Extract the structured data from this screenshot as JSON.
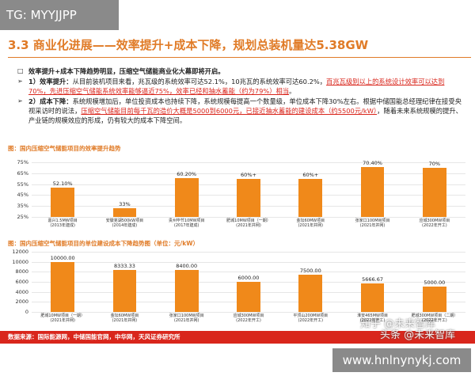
{
  "tag": "TG: MYYJJPP",
  "title": "3.3 商业化进展——效率提升+成本下降，规划总装机量达5.38GW",
  "bullets": [
    {
      "marker": "□",
      "segments": [
        {
          "text": "效率提升+成本下降趋势明显，压缩空气储能商业化大幕即将开启。",
          "bold": true
        }
      ]
    },
    {
      "marker": "➢",
      "segments": [
        {
          "text": "1）效率提升：",
          "bold": true
        },
        {
          "text": "从目前装机项目来看，兆瓦级的系统效率可达52.1%，10兆瓦的系统效率可达60.2%，"
        },
        {
          "text": "百兆瓦级别以上的系统设计效率可以达到70%，先进压缩空气储能系统效率能够逼近75%，效率已经和抽水蓄能（约为79%）相当",
          "red": true
        },
        {
          "text": "。"
        }
      ]
    },
    {
      "marker": "➢",
      "segments": [
        {
          "text": "2）成本下降：",
          "bold": true
        },
        {
          "text": "系统规模增加后，单位投资成本也持续下降，系统规模每提高一个数量级，单位成本下降30%左右。根据中储国能总经理纪律在接受央视采访时的说法，"
        },
        {
          "text": "压缩空气储能目前每千瓦的造价大概是5000到6000元，已接近抽水蓄能的建设成本（约5500元/kW）",
          "red": true
        },
        {
          "text": "，随着未来系统规模的提升、产业链的规模效应的形成，仍有较大的成本下降空间。"
        }
      ]
    }
  ],
  "chart_data": [
    {
      "type": "bar",
      "title": "图：国内压缩空气储能项目的效率提升趋势",
      "categories": [
        "嘉兴1.5MW项目\n(2013年建成)",
        "安徽芜湖500kW项目\n(2014年建成)",
        "贵州毕节10MW项目\n(2017年建成)",
        "肥城10MW项目（一期）\n(2021年并网)",
        "金坛60MW项目\n(2021年并网)",
        "张家口100MW项目\n(2021年并网)",
        "应城300MW项目\n(2022年开工)"
      ],
      "values": [
        52.1,
        33,
        60.2,
        60,
        60,
        70.4,
        70
      ],
      "value_labels": [
        "52.10%",
        "33%",
        "60.20%",
        "60%+",
        "60%+",
        "70.40%",
        "70%"
      ],
      "color": "#f0891a",
      "grid": true,
      "ylim": [
        25,
        75
      ],
      "yticks": [
        {
          "value": 25,
          "label": "25%"
        },
        {
          "value": 35,
          "label": "35%"
        },
        {
          "value": 45,
          "label": "45%"
        },
        {
          "value": 55,
          "label": "55%"
        },
        {
          "value": 65,
          "label": "65%"
        },
        {
          "value": 75,
          "label": "75%"
        }
      ]
    },
    {
      "type": "bar",
      "title": "图：国内压缩空气储能项目的单位建设成本下降趋势图（单位：元/kW）",
      "categories": [
        "肥城10MW项目（一期）\n(2021年并网)",
        "金坛60MW项目\n(2021年并网)",
        "张家口100MW项目\n(2021年并网)",
        "应城300MW项目\n(2022年开工)",
        "平顶山200MW项目\n(2022年开工)",
        "淮安465MW项目\n(2022年开工)",
        "肥城300MW项目（二期）\n(2022年开工)"
      ],
      "values": [
        10000,
        8333.33,
        8400,
        6000,
        7500,
        5666.67,
        5000
      ],
      "value_labels": [
        "10000.00",
        "8333.33",
        "8400.00",
        "6000.00",
        "7500.00",
        "5666.67",
        "5000.00"
      ],
      "color": "#f0891a",
      "grid": true,
      "ylim": [
        0,
        12000
      ],
      "yticks": [
        0,
        2000,
        4000,
        6000,
        8000,
        10000,
        12000
      ]
    }
  ],
  "source": "数据来源：国际能源网，中储国能官网，中华网，天风证券研究所",
  "watermarks": [
    "知乎 @未来智库",
    "头条 @未来智库"
  ],
  "site": "www.hnlnynykj.com"
}
